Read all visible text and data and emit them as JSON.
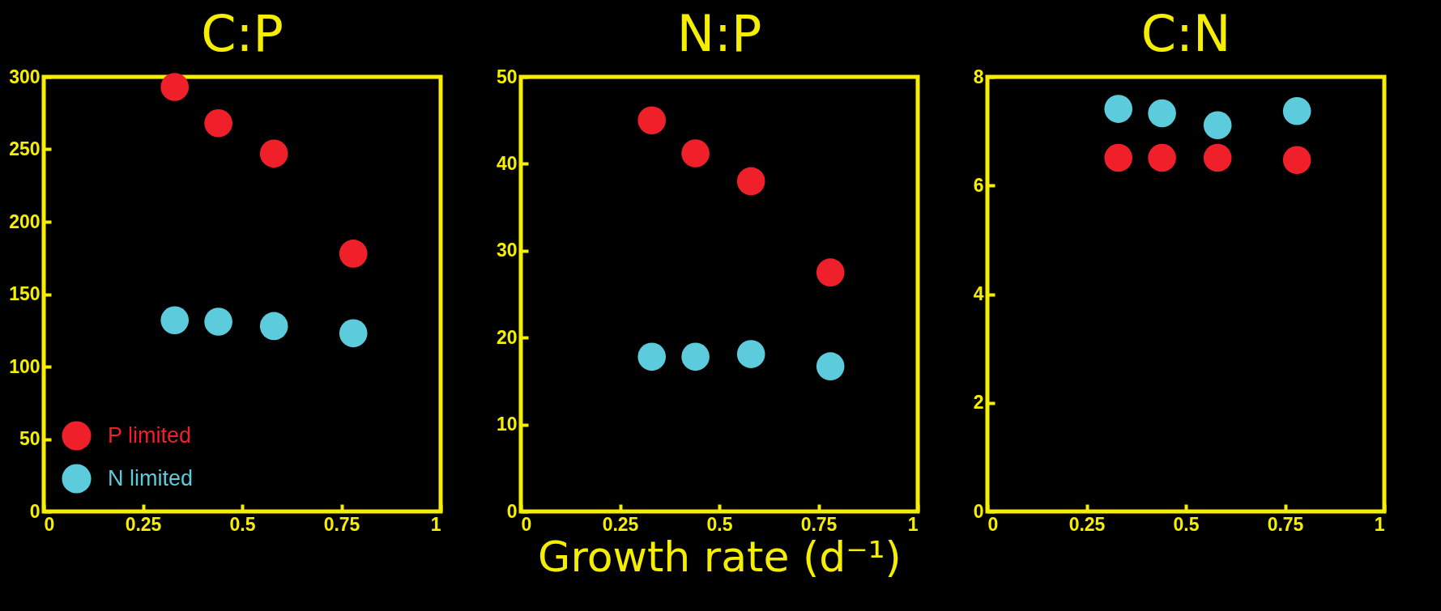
{
  "chart_data": [
    {
      "type": "scatter",
      "title": "C:P",
      "x": [
        0.33,
        0.44,
        0.58,
        0.78
      ],
      "xlim": [
        0,
        1
      ],
      "xticks": [
        0,
        0.25,
        0.5,
        0.75,
        1
      ],
      "ylim": [
        0,
        300
      ],
      "yticks": [
        0,
        50,
        100,
        150,
        200,
        250,
        300
      ],
      "grid": false,
      "marker": "circle",
      "legend": "bottom left",
      "series": [
        {
          "name": "P limited",
          "color": "#f0202a",
          "values": [
            293,
            268,
            247,
            178
          ]
        },
        {
          "name": "N limited",
          "color": "#5ccbdc",
          "values": [
            132,
            131,
            128,
            123
          ]
        }
      ]
    },
    {
      "type": "scatter",
      "title": "N:P",
      "xlabel": "Growth rate (d⁻¹)",
      "x": [
        0.33,
        0.44,
        0.58,
        0.78
      ],
      "xlim": [
        0,
        1
      ],
      "xticks": [
        0,
        0.25,
        0.5,
        0.75,
        1
      ],
      "ylim": [
        0,
        50
      ],
      "yticks": [
        0,
        10,
        20,
        30,
        40,
        50
      ],
      "grid": false,
      "marker": "circle",
      "series": [
        {
          "color": "#f0202a",
          "values": [
            45.0,
            41.2,
            38.0,
            27.5
          ]
        },
        {
          "color": "#5ccbdc",
          "values": [
            17.8,
            17.8,
            18.1,
            16.7
          ]
        }
      ]
    },
    {
      "type": "scatter",
      "title": "C:N",
      "x": [
        0.33,
        0.44,
        0.58,
        0.78
      ],
      "xlim": [
        0,
        1
      ],
      "xticks": [
        0,
        0.25,
        0.5,
        0.75,
        1
      ],
      "ylim": [
        0,
        8
      ],
      "yticks": [
        0,
        2,
        4,
        6,
        8
      ],
      "grid": false,
      "marker": "circle",
      "series": [
        {
          "color": "#f0202a",
          "values": [
            6.51,
            6.51,
            6.51,
            6.47
          ]
        },
        {
          "color": "#5ccbdc",
          "values": [
            7.41,
            7.33,
            7.11,
            7.37
          ]
        }
      ]
    }
  ]
}
